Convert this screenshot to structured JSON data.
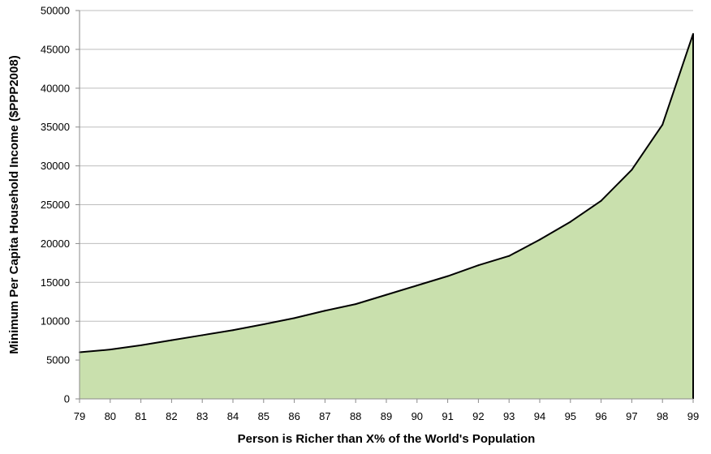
{
  "chart_data": {
    "type": "area",
    "xlabel": "Person is Richer than X% of the World's Population",
    "ylabel": "Minimum Per Capita Household Income ($PPP2008)",
    "x": [
      79,
      80,
      81,
      82,
      83,
      84,
      85,
      86,
      87,
      88,
      89,
      90,
      91,
      92,
      93,
      94,
      95,
      96,
      97,
      98,
      99
    ],
    "values": [
      6000,
      6350,
      6900,
      7550,
      8200,
      8850,
      9600,
      10400,
      11350,
      12200,
      13400,
      14600,
      15800,
      17200,
      18400,
      20500,
      22800,
      25500,
      29500,
      35300,
      47000
    ],
    "ylim": [
      0,
      50000
    ],
    "yticks": [
      "0",
      "5000",
      "10000",
      "15000",
      "20000",
      "25000",
      "30000",
      "35000",
      "40000",
      "45000",
      "50000"
    ],
    "xticks": [
      "79",
      "80",
      "81",
      "82",
      "83",
      "84",
      "85",
      "86",
      "87",
      "88",
      "89",
      "90",
      "91",
      "92",
      "93",
      "94",
      "95",
      "96",
      "97",
      "98",
      "99"
    ],
    "grid": true,
    "fill_color": "#c9e0ad",
    "line_color": "#000000",
    "grid_color": "#bdbdbd"
  }
}
